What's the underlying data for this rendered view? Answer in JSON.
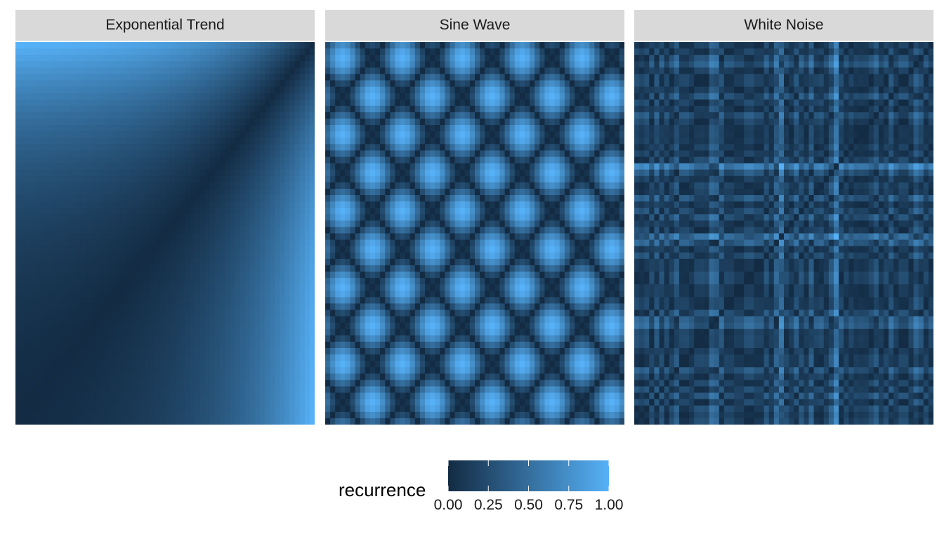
{
  "chart_data": [
    {
      "type": "heatmap",
      "title": "Exponential Trend",
      "pattern": "exponential-trend",
      "grid_size": 60,
      "xlabel": "",
      "ylabel": "",
      "axes_visible": false,
      "grid": false
    },
    {
      "type": "heatmap",
      "title": "Sine Wave",
      "pattern": "sine-wave",
      "grid_size": 60,
      "cycles": 5,
      "xlabel": "",
      "ylabel": "",
      "axes_visible": false,
      "grid": false
    },
    {
      "type": "heatmap",
      "title": "White Noise",
      "pattern": "white-noise",
      "grid_size": 60,
      "xlabel": "",
      "ylabel": "",
      "axes_visible": false,
      "grid": false
    }
  ],
  "legend": {
    "title": "recurrence",
    "placement": "bottom",
    "range": [
      0,
      1
    ],
    "ticks": [
      0.0,
      0.25,
      0.5,
      0.75,
      1.0
    ],
    "tick_labels": [
      "0.00",
      "0.25",
      "0.50",
      "0.75",
      "1.00"
    ],
    "color_low": "#132B43",
    "color_high": "#56B1F7"
  }
}
